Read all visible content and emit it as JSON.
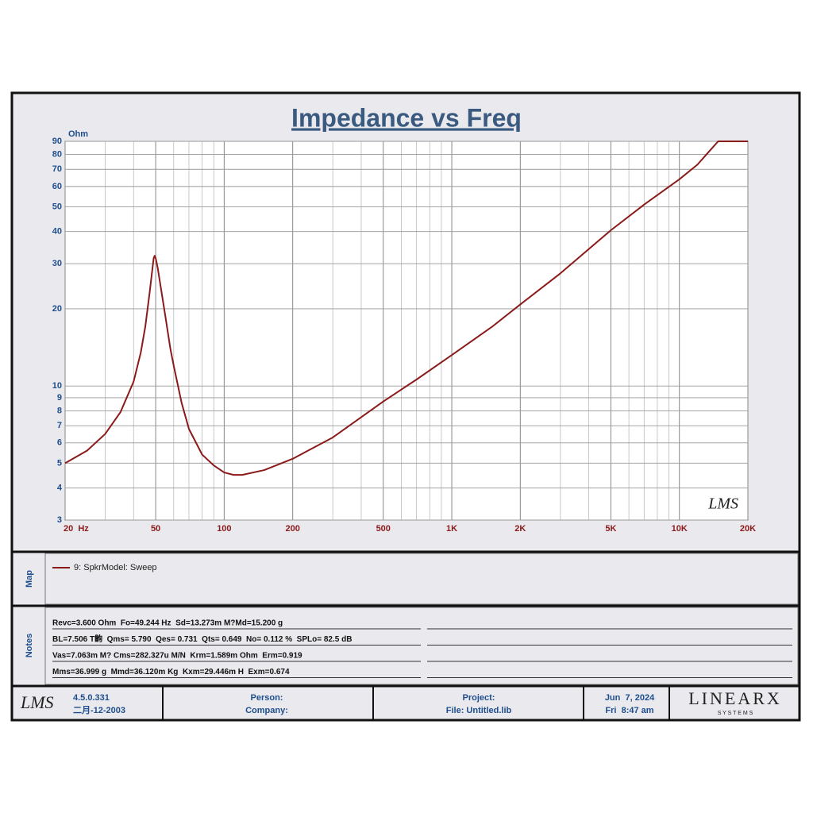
{
  "chart_data": {
    "type": "line",
    "title": "Impedance vs Freq",
    "y_label": "Ohm",
    "x": [
      20,
      25,
      30,
      35,
      40,
      43,
      45,
      47,
      48,
      49,
      49.5,
      50,
      51,
      52,
      55,
      58,
      60,
      65,
      70,
      80,
      90,
      100,
      110,
      120,
      150,
      200,
      300,
      500,
      700,
      1000,
      1500,
      2000,
      3000,
      5000,
      7000,
      10000,
      12000,
      14800,
      20000
    ],
    "series": [
      {
        "name": "9: SpkrModel: Sweep",
        "color": "#8b1a1a",
        "values": [
          5.0,
          5.6,
          6.5,
          7.9,
          10.4,
          13.5,
          17,
          23,
          27,
          31.5,
          32.2,
          31.5,
          29,
          26,
          19,
          14,
          12,
          8.6,
          6.8,
          5.4,
          4.9,
          4.6,
          4.5,
          4.5,
          4.7,
          5.2,
          6.3,
          8.7,
          10.6,
          13.2,
          17,
          20.8,
          27.5,
          40.5,
          51,
          64,
          73,
          90,
          90
        ]
      }
    ],
    "xlim": [
      20,
      20000
    ],
    "ylim": [
      3,
      90
    ],
    "xlog": true,
    "ylog": true,
    "grid": true,
    "xticks": [
      {
        "value": 20,
        "label": "20  Hz"
      },
      50,
      100,
      200,
      500,
      {
        "value": 1000,
        "label": "1K"
      },
      {
        "value": 2000,
        "label": "2K"
      },
      {
        "value": 5000,
        "label": "5K"
      },
      {
        "value": 10000,
        "label": "10K"
      },
      {
        "value": 20000,
        "label": "20K"
      }
    ],
    "x_minor_grid": [
      30,
      40,
      60,
      70,
      80,
      90,
      300,
      400,
      600,
      700,
      800,
      900,
      3000,
      4000,
      6000,
      7000,
      8000,
      9000
    ],
    "yticks": [
      3,
      4,
      5,
      6,
      7,
      8,
      9,
      10,
      20,
      30,
      40,
      50,
      60,
      70,
      80,
      90
    ],
    "watermark": "LMS"
  },
  "map": {
    "label": "Map"
  },
  "notes": {
    "label": "Notes",
    "lines": [
      "Revc=3.600 Ohm  Fo=49.244 Hz  Sd=13.273m M?Md=15.200 g",
      "BL=7.506 T齣  Qms= 5.790  Qes= 0.731  Qts= 0.649  No= 0.112 %  SPLo= 82.5 dB",
      "Vas=7.063m M? Cms=282.327u M/N  Krm=1.589m Ohm  Erm=0.919",
      "Mms=36.999 g  Mmd=36.120m Kg  Kxm=29.446m H  Exm=0.674"
    ]
  },
  "footer": {
    "logo": "LMS",
    "version": "4.5.0.331",
    "build_date": "二月-12-2003",
    "person": "Person:",
    "company": "Company:",
    "project": "Project:",
    "file": "File: Untitled.lib",
    "date": "Jun  7, 2024",
    "time": "Fri  8:47 am",
    "brand": "LINEARX",
    "brand_sub": "S Y S T E M S"
  }
}
